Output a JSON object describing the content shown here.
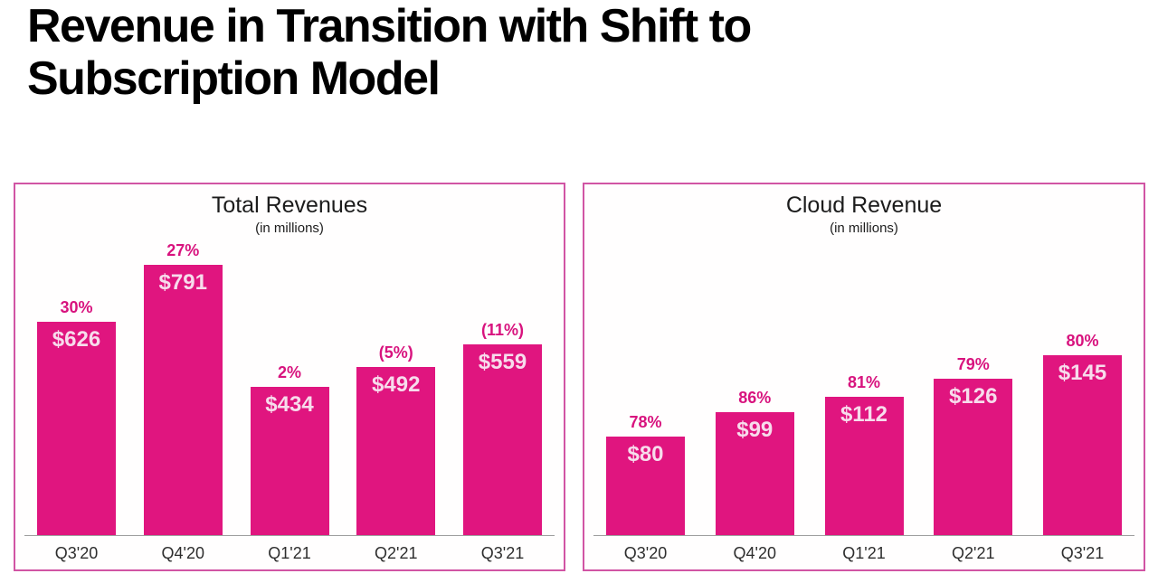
{
  "page": {
    "title": "Revenue in Transition with Shift to Subscription Model"
  },
  "colors": {
    "page_title": "#000000",
    "chart_title": "#1c1c1c",
    "bar_fill": "#e0157f",
    "growth_label": "#d8137e",
    "value_label": "#f7dcec",
    "panel_border": "#d155a4",
    "axis_line": "#9e9e9e",
    "category_label": "#2e2e2e"
  },
  "chart_data": [
    {
      "type": "bar",
      "title": "Total Revenues",
      "subtitle": "(in millions)",
      "categories": [
        "Q3'20",
        "Q4'20",
        "Q1'21",
        "Q2'21",
        "Q3'21"
      ],
      "values": [
        626,
        791,
        434,
        492,
        559
      ],
      "value_labels": [
        "$626",
        "$791",
        "$434",
        "$492",
        "$559"
      ],
      "growth_labels": [
        "30%",
        "27%",
        "2%",
        "(5%)",
        "(11%)"
      ],
      "xlabel": "",
      "ylabel": "",
      "ylim": [
        0,
        800
      ],
      "grid": false,
      "legend": null
    },
    {
      "type": "bar",
      "title": "Cloud Revenue",
      "subtitle": "(in millions)",
      "categories": [
        "Q3'20",
        "Q4'20",
        "Q1'21",
        "Q2'21",
        "Q3'21"
      ],
      "values": [
        80,
        99,
        112,
        126,
        145
      ],
      "value_labels": [
        "$80",
        "$99",
        "$112",
        "$126",
        "$145"
      ],
      "growth_labels": [
        "78%",
        "86%",
        "81%",
        "79%",
        "80%"
      ],
      "xlabel": "",
      "ylabel": "",
      "ylim": [
        0,
        150
      ],
      "grid": false,
      "legend": null
    }
  ]
}
